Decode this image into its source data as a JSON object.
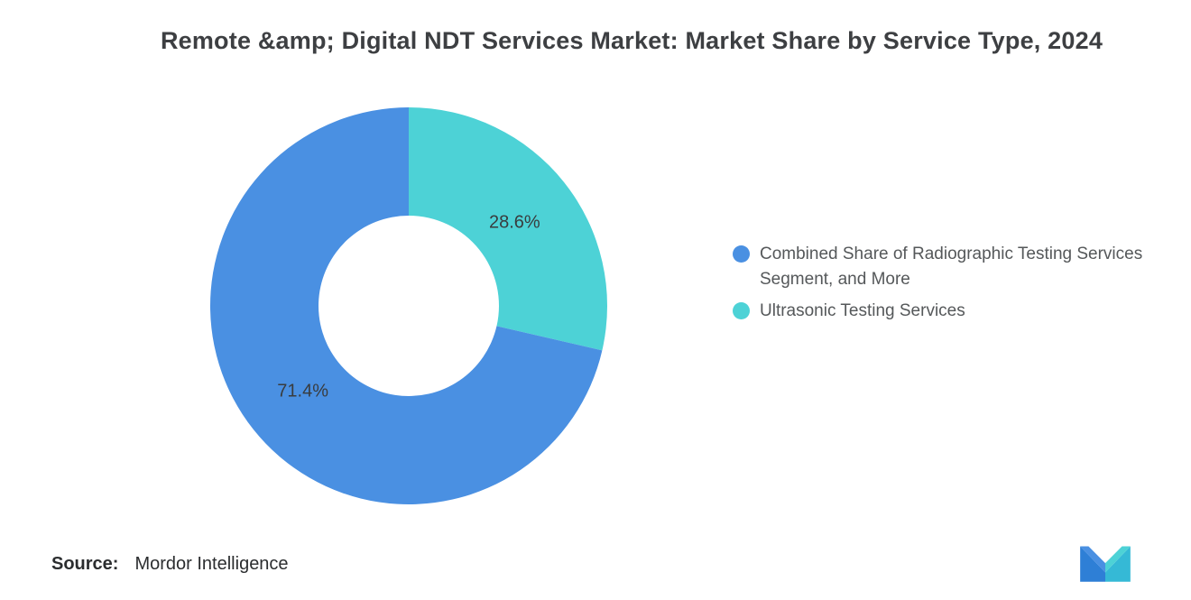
{
  "chart_data": {
    "type": "pie",
    "donut": true,
    "title": "Remote &amp; Digital NDT Services Market: Market Share by Service Type, 2024",
    "slices": [
      {
        "label": "Combined Share of Radiographic Testing Services Segment, and More",
        "value": 71.4,
        "display": "71.4%",
        "color": "#4a90e2"
      },
      {
        "label": "Ultrasonic Testing Services",
        "value": 28.6,
        "display": "28.6%",
        "color": "#4dd2d6"
      }
    ],
    "start_angle_deg": 0,
    "direction": "clockwise",
    "draw_order": [
      1,
      0
    ],
    "legend_position": "right",
    "value_labels": "inside",
    "grid": false
  },
  "footer": {
    "source_label": "Source:",
    "source_value": "Mordor Intelligence"
  },
  "branding": {
    "logo_name": "mordor-intelligence-logo"
  }
}
